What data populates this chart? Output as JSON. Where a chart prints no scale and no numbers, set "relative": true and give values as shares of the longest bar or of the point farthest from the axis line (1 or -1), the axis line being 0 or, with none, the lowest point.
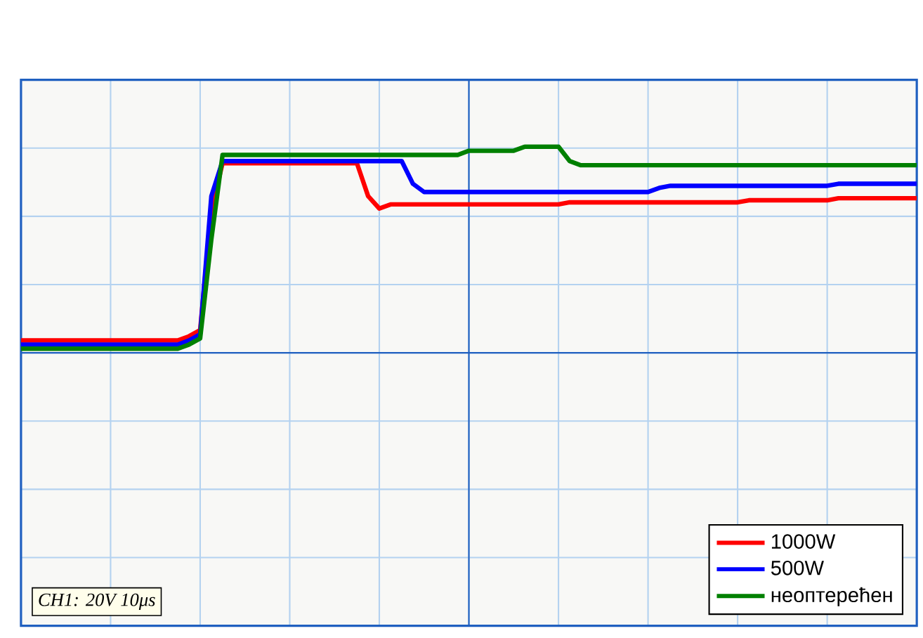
{
  "chart_data": {
    "type": "line",
    "relative": true,
    "grid": true,
    "legend": "bottom right",
    "categories": [
      null,
      null,
      null,
      null,
      null,
      null,
      null,
      null,
      null,
      null,
      null,
      null,
      null,
      null,
      null,
      null,
      null,
      null,
      null,
      null,
      null,
      null,
      null,
      null,
      null,
      null,
      null,
      null,
      null,
      null,
      null,
      null,
      null,
      null,
      null,
      null,
      null,
      null,
      null,
      null,
      null,
      null,
      null,
      null,
      null,
      null,
      null,
      null,
      null,
      null,
      null,
      null,
      null,
      null,
      null,
      null,
      null,
      null,
      null,
      null,
      null,
      null,
      null,
      null,
      null,
      null,
      null,
      null,
      null,
      null,
      null,
      null,
      null,
      null,
      null,
      null,
      null,
      null,
      null,
      null,
      null
    ],
    "series": [
      {
        "name": "1000W",
        "color": "#ff0000",
        "values": [
          0.06,
          0.06,
          0.06,
          0.06,
          0.06,
          0.06,
          0.06,
          0.06,
          0.06,
          0.06,
          0.06,
          0.06,
          0.06,
          0.06,
          0.06,
          0.08,
          0.11,
          0.69,
          0.92,
          0.92,
          0.92,
          0.92,
          0.92,
          0.92,
          0.92,
          0.92,
          0.92,
          0.92,
          0.92,
          0.92,
          0.92,
          0.76,
          0.7,
          0.72,
          0.72,
          0.72,
          0.72,
          0.72,
          0.72,
          0.72,
          0.72,
          0.72,
          0.72,
          0.72,
          0.72,
          0.72,
          0.72,
          0.72,
          0.72,
          0.73,
          0.73,
          0.73,
          0.73,
          0.73,
          0.73,
          0.73,
          0.73,
          0.73,
          0.73,
          0.73,
          0.73,
          0.73,
          0.73,
          0.73,
          0.73,
          0.74,
          0.74,
          0.74,
          0.74,
          0.74,
          0.74,
          0.74,
          0.74,
          0.75,
          0.75,
          0.75,
          0.75,
          0.75,
          0.75,
          0.75,
          0.75
        ]
      },
      {
        "name": "500W",
        "color": "#0000ff",
        "values": [
          0.04,
          0.04,
          0.04,
          0.04,
          0.04,
          0.04,
          0.04,
          0.04,
          0.04,
          0.04,
          0.04,
          0.04,
          0.04,
          0.04,
          0.04,
          0.06,
          0.09,
          0.76,
          0.93,
          0.93,
          0.93,
          0.93,
          0.93,
          0.93,
          0.93,
          0.93,
          0.93,
          0.93,
          0.93,
          0.93,
          0.93,
          0.93,
          0.93,
          0.93,
          0.93,
          0.82,
          0.78,
          0.78,
          0.78,
          0.78,
          0.78,
          0.78,
          0.78,
          0.78,
          0.78,
          0.78,
          0.78,
          0.78,
          0.78,
          0.78,
          0.78,
          0.78,
          0.78,
          0.78,
          0.78,
          0.78,
          0.78,
          0.8,
          0.81,
          0.81,
          0.81,
          0.81,
          0.81,
          0.81,
          0.81,
          0.81,
          0.81,
          0.81,
          0.81,
          0.81,
          0.81,
          0.81,
          0.81,
          0.82,
          0.82,
          0.82,
          0.82,
          0.82,
          0.82,
          0.82,
          0.82
        ]
      },
      {
        "name": "неоптерећен",
        "color": "#008000",
        "values": [
          0.02,
          0.02,
          0.02,
          0.02,
          0.02,
          0.02,
          0.02,
          0.02,
          0.02,
          0.02,
          0.02,
          0.02,
          0.02,
          0.02,
          0.02,
          0.04,
          0.07,
          0.55,
          0.96,
          0.96,
          0.96,
          0.96,
          0.96,
          0.96,
          0.96,
          0.96,
          0.96,
          0.96,
          0.96,
          0.96,
          0.96,
          0.96,
          0.96,
          0.96,
          0.96,
          0.96,
          0.96,
          0.96,
          0.96,
          0.96,
          0.98,
          0.98,
          0.98,
          0.98,
          0.98,
          1.0,
          1.0,
          1.0,
          1.0,
          0.93,
          0.91,
          0.91,
          0.91,
          0.91,
          0.91,
          0.91,
          0.91,
          0.91,
          0.91,
          0.91,
          0.91,
          0.91,
          0.91,
          0.91,
          0.91,
          0.91,
          0.91,
          0.91,
          0.91,
          0.91,
          0.91,
          0.91,
          0.91,
          0.91,
          0.91,
          0.91,
          0.91,
          0.91,
          0.91,
          0.91,
          0.91
        ]
      }
    ],
    "annotations": [
      "CH1: 20V 10μs"
    ]
  }
}
